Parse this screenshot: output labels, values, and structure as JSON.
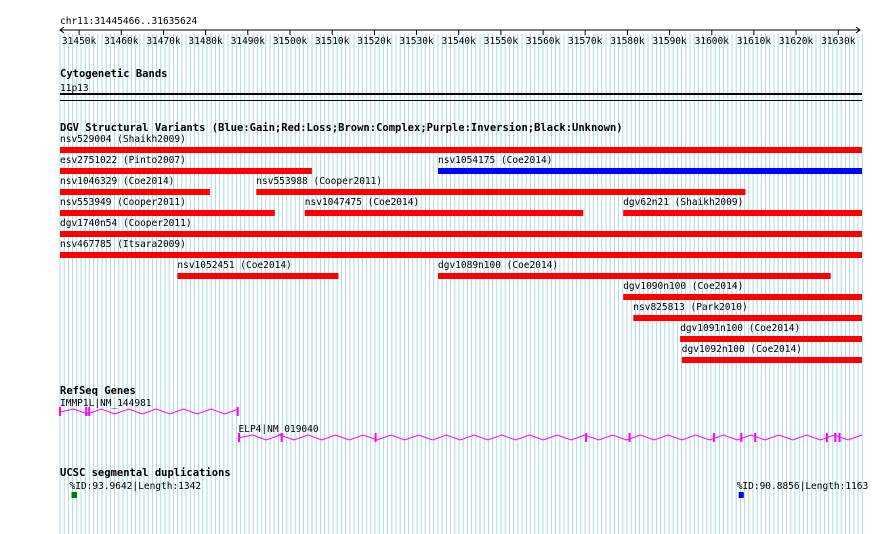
{
  "region": {
    "label": "chr11:31445466..31635624",
    "start": 31445466,
    "end": 31635624
  },
  "ruler": {
    "ticks": [
      {
        "pos": 31450000,
        "label": "31450k"
      },
      {
        "pos": 31460000,
        "label": "31460k"
      },
      {
        "pos": 31470000,
        "label": "31470k"
      },
      {
        "pos": 31480000,
        "label": "31480k"
      },
      {
        "pos": 31490000,
        "label": "31490k"
      },
      {
        "pos": 31500000,
        "label": "31500k"
      },
      {
        "pos": 31510000,
        "label": "31510k"
      },
      {
        "pos": 31520000,
        "label": "31520k"
      },
      {
        "pos": 31530000,
        "label": "31530k"
      },
      {
        "pos": 31540000,
        "label": "31540k"
      },
      {
        "pos": 31550000,
        "label": "31550k"
      },
      {
        "pos": 31560000,
        "label": "31560k"
      },
      {
        "pos": 31570000,
        "label": "31570k"
      },
      {
        "pos": 31580000,
        "label": "31580k"
      },
      {
        "pos": 31590000,
        "label": "31590k"
      },
      {
        "pos": 31600000,
        "label": "31600k"
      },
      {
        "pos": 31610000,
        "label": "31610k"
      },
      {
        "pos": 31620000,
        "label": "31620k"
      },
      {
        "pos": 31630000,
        "label": "31630k"
      }
    ]
  },
  "colors": {
    "gain": "#0000ff",
    "loss": "#ff0000",
    "complex": "#8b4513",
    "inversion": "#800080",
    "unknown": "#000000",
    "gene": "#ff00ff",
    "segdup_high": "#008000",
    "segdup_low": "#0000ff",
    "grid": "#add8e6"
  },
  "tracks": {
    "cytobands": {
      "title": "Cytogenetic Bands",
      "band": "11p13"
    },
    "dgv": {
      "title": "DGV Structural Variants (Blue:Gain;Red:Loss;Brown:Complex;Purple:Inversion;Black:Unknown)",
      "features": [
        {
          "label": "nsv529004 (Shaikh2009)",
          "start": 31445466,
          "end": 31635624,
          "type": "loss",
          "row": 0
        },
        {
          "label": "esv2751022 (Pinto2007)",
          "start": 31445466,
          "end": 31505200,
          "type": "loss",
          "row": 1
        },
        {
          "label": "nsv1054175 (Coe2014)",
          "start": 31535100,
          "end": 31635624,
          "type": "gain",
          "row": 1
        },
        {
          "label": "nsv1046329 (Coe2014)",
          "start": 31445466,
          "end": 31481000,
          "type": "loss",
          "row": 2
        },
        {
          "label": "nsv553988 (Cooper2011)",
          "start": 31492000,
          "end": 31608000,
          "type": "loss",
          "row": 2
        },
        {
          "label": "nsv553949 (Cooper2011)",
          "start": 31445466,
          "end": 31496400,
          "type": "loss",
          "row": 3
        },
        {
          "label": "nsv1047475 (Coe2014)",
          "start": 31503500,
          "end": 31569500,
          "type": "loss",
          "row": 3
        },
        {
          "label": "dgv62n21 (Shaikh2009)",
          "start": 31579000,
          "end": 31635624,
          "type": "loss",
          "row": 3
        },
        {
          "label": "dgv1740n54 (Cooper2011)",
          "start": 31445466,
          "end": 31635624,
          "type": "loss",
          "row": 4
        },
        {
          "label": "nsv467785 (Itsara2009)",
          "start": 31445466,
          "end": 31635624,
          "type": "loss",
          "row": 5
        },
        {
          "label": "nsv1052451 (Coe2014)",
          "start": 31473300,
          "end": 31511500,
          "type": "loss",
          "row": 6
        },
        {
          "label": "dgv1089n100 (Coe2014)",
          "start": 31535100,
          "end": 31628200,
          "type": "loss",
          "row": 6
        },
        {
          "label": "dgv1090n100 (Coe2014)",
          "start": 31579000,
          "end": 31635624,
          "type": "loss",
          "row": 7
        },
        {
          "label": "nsv825813 (Park2010)",
          "start": 31581400,
          "end": 31635624,
          "type": "loss",
          "row": 8
        },
        {
          "label": "dgv1091n100 (Coe2014)",
          "start": 31592500,
          "end": 31635624,
          "type": "loss",
          "row": 9
        },
        {
          "label": "dgv1092n100 (Coe2014)",
          "start": 31592900,
          "end": 31635624,
          "type": "loss",
          "row": 10
        }
      ]
    },
    "refseq": {
      "title": "RefSeq Genes",
      "genes": [
        {
          "label": "IMMP1L|NM_144981",
          "start": 31445466,
          "end": 31487800,
          "exons": [
            31445466,
            31451700,
            31452400,
            31487600
          ]
        },
        {
          "label": "ELP4|NM_019040",
          "start": 31487800,
          "end": 31635624,
          "exons": [
            31487900,
            31498000,
            31520300,
            31570200,
            31580500,
            31600500,
            31607000,
            31610300,
            31627300,
            31629300,
            31630300
          ]
        }
      ]
    },
    "segdups": {
      "title": "UCSC segmental duplications",
      "features": [
        {
          "label": "%ID:93.9642|Length:1342",
          "start": 31448200,
          "end": 31449500,
          "level": "high"
        },
        {
          "label": "%ID:90.8856|Length:1163",
          "start": 31606400,
          "end": 31607600,
          "level": "low"
        }
      ]
    }
  }
}
